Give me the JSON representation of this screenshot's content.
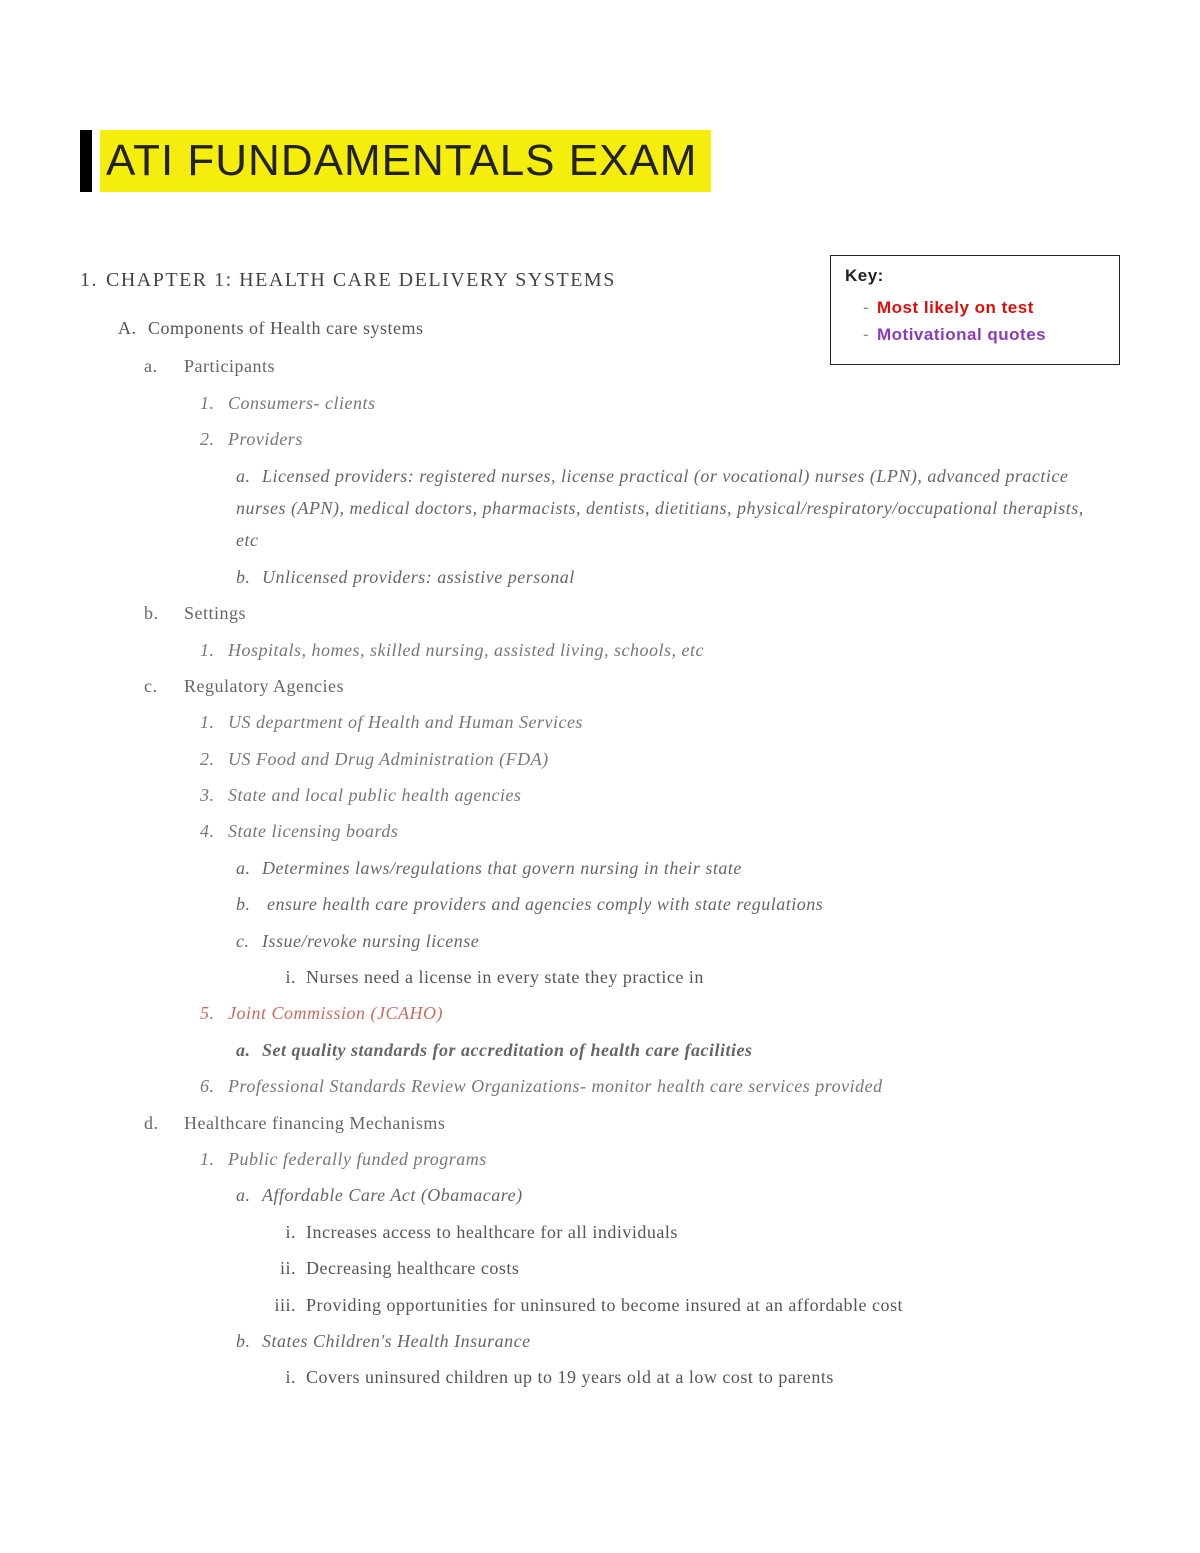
{
  "title": "ATI FUNDAMENTALS EXAM",
  "key": {
    "heading": "Key:",
    "items": [
      {
        "text": "Most likely on test",
        "style": "red"
      },
      {
        "text": "Motivational quotes",
        "style": "purple"
      }
    ]
  },
  "chapter": {
    "number": "1.",
    "title": "CHAPTER 1: HEALTH CARE DELIVERY SYSTEMS"
  },
  "A": {
    "marker": "A.",
    "text": "Components of Health care systems"
  },
  "a_participants": {
    "marker": "a.",
    "text": "Participants",
    "i1": {
      "marker": "1.",
      "text": "Consumers- clients"
    },
    "i2": {
      "marker": "2.",
      "text": "Providers"
    },
    "i2a": {
      "marker": "a.",
      "text": "Licensed providers: registered nurses, license practical (or vocational) nurses (LPN), advanced practice nurses (APN), medical doctors, pharmacists, dentists, dietitians, physical/respiratory/occupational therapists, etc"
    },
    "i2b": {
      "marker": "b.",
      "text": "Unlicensed providers: assistive personal"
    }
  },
  "b_settings": {
    "marker": "b.",
    "text": "Settings",
    "i1": {
      "marker": "1.",
      "text": "Hospitals, homes, skilled nursing, assisted living, schools, etc"
    }
  },
  "c_reg": {
    "marker": "c.",
    "text": "Regulatory Agencies",
    "i1": {
      "marker": "1.",
      "text": "US department of Health and Human Services"
    },
    "i2": {
      "marker": "2.",
      "text": "US Food and Drug Administration (FDA)"
    },
    "i3": {
      "marker": "3.",
      "text": "State and local public health agencies"
    },
    "i4": {
      "marker": "4.",
      "text": "State licensing boards"
    },
    "i4a": {
      "marker": "a.",
      "text": "Determines laws/regulations that govern nursing in their state"
    },
    "i4b": {
      "marker": "b.",
      "text": " ensure health care providers and agencies comply with state regulations"
    },
    "i4c": {
      "marker": "c.",
      "text": "Issue/revoke nursing license"
    },
    "i4ci": {
      "marker": "i.",
      "text": "Nurses need a license in every state they practice in"
    },
    "i5": {
      "marker": "5.",
      "text": "Joint Commission (JCAHO)"
    },
    "i5a": {
      "marker": "a.",
      "text": "Set quality standards for accreditation of health care facilities"
    },
    "i6": {
      "marker": "6.",
      "text": "Professional Standards Review Organizations- monitor health care services provided"
    }
  },
  "d_fin": {
    "marker": "d.",
    "text": "Healthcare financing Mechanisms",
    "i1": {
      "marker": "1.",
      "text": "Public federally funded programs"
    },
    "i1a": {
      "marker": "a.",
      "text": "Affordable Care Act (Obamacare)"
    },
    "i1ai": {
      "marker": "i.",
      "text": "Increases access to healthcare for all individuals"
    },
    "i1aii": {
      "marker": "ii.",
      "text": "Decreasing healthcare costs"
    },
    "i1aiii": {
      "marker": "iii.",
      "text": "Providing opportunities for uninsured to become insured at an affordable cost"
    },
    "i1b": {
      "marker": "b.",
      "text": "States Children's Health Insurance"
    },
    "i1bi": {
      "marker": "i.",
      "text": "Covers uninsured children up to 19 years old at a low cost to parents"
    }
  }
}
